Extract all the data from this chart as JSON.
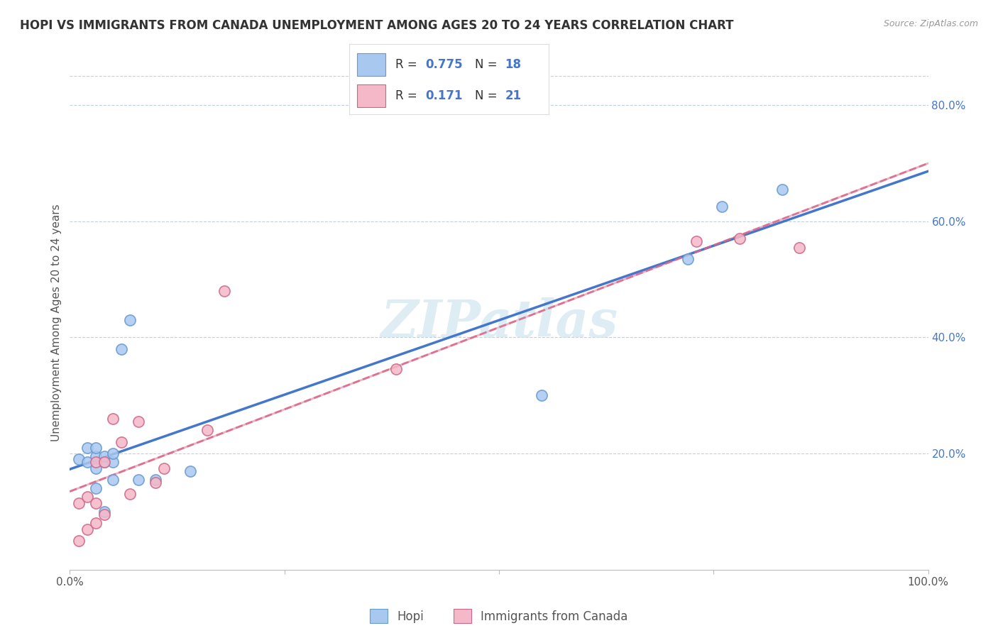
{
  "title": "HOPI VS IMMIGRANTS FROM CANADA UNEMPLOYMENT AMONG AGES 20 TO 24 YEARS CORRELATION CHART",
  "source": "Source: ZipAtlas.com",
  "ylabel": "Unemployment Among Ages 20 to 24 years",
  "watermark": "ZIPatlas",
  "hopi_color": "#a8c8f0",
  "hopi_edge_color": "#6699cc",
  "canada_color": "#f5b8c8",
  "canada_edge_color": "#cc6688",
  "hopi_line_color": "#4477cc",
  "canada_line_color": "#dd6688",
  "background_color": "#ffffff",
  "grid_color": "#c0d0e0",
  "xlim": [
    0.0,
    1.0
  ],
  "ylim": [
    0.0,
    0.85
  ],
  "hopi_x": [
    0.01,
    0.02,
    0.02,
    0.03,
    0.03,
    0.03,
    0.03,
    0.04,
    0.04,
    0.04,
    0.05,
    0.05,
    0.05,
    0.06,
    0.07,
    0.08,
    0.1,
    0.14,
    0.55,
    0.72,
    0.76,
    0.83
  ],
  "hopi_y": [
    0.19,
    0.185,
    0.21,
    0.14,
    0.175,
    0.195,
    0.21,
    0.185,
    0.195,
    0.1,
    0.155,
    0.185,
    0.2,
    0.38,
    0.43,
    0.155,
    0.155,
    0.17,
    0.3,
    0.535,
    0.625,
    0.655
  ],
  "canada_x": [
    0.01,
    0.01,
    0.02,
    0.02,
    0.03,
    0.03,
    0.03,
    0.04,
    0.04,
    0.05,
    0.06,
    0.07,
    0.08,
    0.1,
    0.11,
    0.16,
    0.18,
    0.38,
    0.73,
    0.78,
    0.85
  ],
  "canada_y": [
    0.05,
    0.115,
    0.07,
    0.125,
    0.08,
    0.115,
    0.185,
    0.095,
    0.185,
    0.26,
    0.22,
    0.13,
    0.255,
    0.15,
    0.175,
    0.24,
    0.48,
    0.345,
    0.565,
    0.57,
    0.555
  ],
  "hopi_line_slope": 0.685,
  "hopi_line_intercept": 0.145,
  "canada_line_slope": 0.49,
  "canada_line_intercept": 0.115
}
